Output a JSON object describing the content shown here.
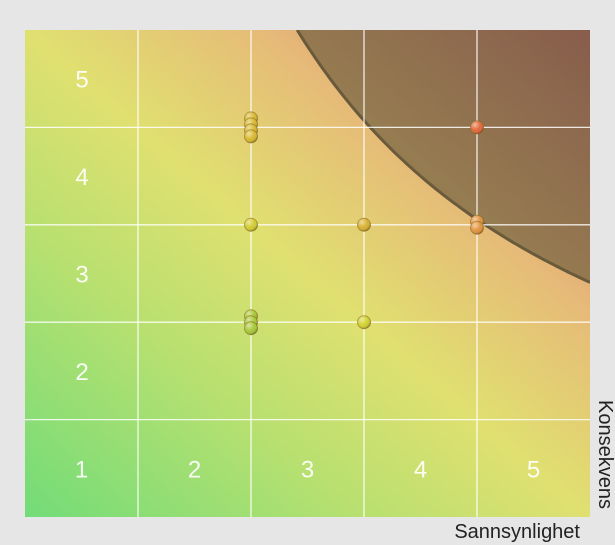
{
  "chart_data": {
    "type": "scatter",
    "title": "",
    "xlabel": "Sannsynlighet",
    "ylabel": "Konsekvens",
    "x_ticks": [
      "1",
      "2",
      "3",
      "4",
      "5"
    ],
    "y_ticks": [
      "1",
      "2",
      "3",
      "4",
      "5"
    ],
    "xlim": [
      1,
      5
    ],
    "ylim": [
      1,
      5
    ],
    "grid": true,
    "background": "risk gradient green (low) to yellow to red (high)",
    "risk_threshold": "curved boundary x*y ≈ 16, shaded area above",
    "points": [
      {
        "x": 2.5,
        "y": 4.5,
        "count": 4,
        "color": "#d8b830"
      },
      {
        "x": 4.5,
        "y": 4.5,
        "count": 1,
        "color": "#e2683a"
      },
      {
        "x": 2.5,
        "y": 3.5,
        "count": 1,
        "color": "#d2cc30"
      },
      {
        "x": 3.5,
        "y": 3.5,
        "count": 1,
        "color": "#d8b030"
      },
      {
        "x": 4.5,
        "y": 3.5,
        "count": 2,
        "color": "#e29440"
      },
      {
        "x": 2.5,
        "y": 2.5,
        "count": 3,
        "color": "#a8c838"
      },
      {
        "x": 3.5,
        "y": 2.5,
        "count": 1,
        "color": "#d2d230"
      }
    ],
    "colors": {
      "low": "#72dc78",
      "mid": "#e0e070",
      "high": "#c0626a",
      "threshold_line": "#6a5a3c",
      "threshold_fill": "#6a5a3c"
    }
  }
}
